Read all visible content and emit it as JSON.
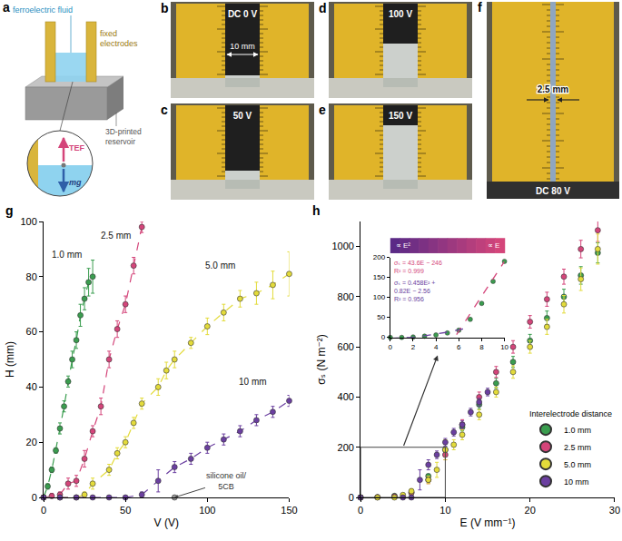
{
  "photos": {
    "a": {
      "fluid": "ferroelectric fluid",
      "electrodes": "fixed electrodes",
      "reservoir": "3D-printed reservoir",
      "up_force": "TEF",
      "down_force": "mg"
    },
    "b": {
      "voltage": "DC 0 V",
      "gap": "10 mm"
    },
    "c": {
      "voltage": "50 V"
    },
    "d": {
      "voltage": "100 V"
    },
    "e": {
      "voltage": "150 V"
    },
    "f": {
      "gap": "2.5 mm",
      "voltage": "DC 80 V"
    }
  },
  "chart_data": [
    {
      "panel": "g",
      "type": "scatter",
      "x_label": "V (V)",
      "y_label": "H (mm)",
      "xlim": [
        0,
        150
      ],
      "ylim": [
        0,
        100
      ],
      "xticks": [
        0,
        50,
        100,
        150
      ],
      "yticks": [
        0,
        20,
        40,
        60,
        80,
        100
      ],
      "grid": false,
      "line_style": "dashed",
      "marker": "circle",
      "series": [
        {
          "name": "1.0 mm",
          "color": "#3a9d4f",
          "label_at": [
            14,
            88
          ],
          "x": [
            0,
            2.5,
            5,
            7.5,
            10,
            12.5,
            15,
            17.5,
            20,
            22.5,
            25,
            27.5,
            30
          ],
          "values": [
            0,
            4,
            10,
            17,
            25,
            33,
            42,
            50,
            57,
            66,
            72,
            78,
            80
          ],
          "errors": [
            0,
            1,
            1,
            1,
            2,
            2,
            2,
            3,
            3,
            4,
            4,
            5,
            6
          ]
        },
        {
          "name": "2.5 mm",
          "color": "#d4457a",
          "label_at": [
            44,
            95
          ],
          "x": [
            0,
            5,
            10,
            15,
            20,
            25,
            30,
            35,
            40,
            45,
            50,
            55,
            60
          ],
          "values": [
            0,
            0.5,
            1,
            5,
            6,
            14,
            24,
            33,
            50,
            61,
            70,
            84,
            98
          ],
          "errors": [
            0,
            1,
            1,
            2,
            2,
            3,
            2,
            3,
            3,
            3,
            3,
            3,
            2
          ]
        },
        {
          "name": "5.0 mm",
          "color": "#e3db3a",
          "label_at": [
            108,
            84
          ],
          "x": [
            0,
            10,
            20,
            25,
            30,
            40,
            45,
            50,
            55,
            60,
            70,
            75,
            80,
            90,
            100,
            110,
            120,
            130,
            140,
            150
          ],
          "values": [
            0,
            0,
            0,
            1,
            5,
            10,
            16,
            20,
            27,
            34,
            40,
            46,
            50,
            56,
            62,
            67,
            72,
            74,
            77,
            81
          ],
          "errors": [
            0,
            0,
            0,
            1,
            2,
            2,
            2,
            2,
            2,
            2,
            3,
            3,
            3,
            2,
            3,
            3,
            3,
            4,
            5,
            8
          ]
        },
        {
          "name": "10 mm",
          "color": "#6b3fa0",
          "label_at": [
            128,
            42
          ],
          "x": [
            0,
            10,
            20,
            30,
            40,
            50,
            60,
            70,
            80,
            90,
            100,
            110,
            120,
            130,
            140,
            150
          ],
          "values": [
            0,
            0,
            0,
            0,
            0,
            0,
            1,
            6,
            11,
            14,
            18,
            21,
            24,
            28,
            31,
            35
          ],
          "errors": [
            0,
            0,
            0,
            0,
            0,
            0,
            1,
            4,
            2,
            2,
            2,
            2,
            2,
            2,
            2,
            2
          ]
        },
        {
          "name": "silicone oil/ 5CB",
          "color": "#9a9a9a",
          "line_style": "none",
          "label_at": [
            112,
            6
          ],
          "x": [
            80
          ],
          "values": [
            0
          ]
        }
      ]
    },
    {
      "panel": "h",
      "type": "scatter",
      "x_label": "E (V mm⁻¹)",
      "y_label": "σₛ (N m⁻²)",
      "xlim": [
        0,
        30
      ],
      "ylim": [
        0,
        1100
      ],
      "xticks": [
        0,
        10,
        20,
        30
      ],
      "yticks": [
        0,
        200,
        400,
        600,
        800,
        1000
      ],
      "grid": false,
      "marker": "circle",
      "legend": "lower right",
      "legend_title": "Interelectrode distance",
      "series": [
        {
          "name": "1.0 mm",
          "color": "#3a9d4f",
          "x": [
            0,
            2,
            4,
            6,
            8,
            10,
            12,
            14,
            16,
            18,
            20,
            22,
            24,
            26,
            28
          ],
          "values": [
            0,
            1,
            6,
            18,
            85,
            190,
            280,
            370,
            455,
            540,
            625,
            715,
            800,
            885,
            975
          ],
          "errors": [
            0,
            1,
            2,
            4,
            8,
            12,
            15,
            18,
            20,
            22,
            25,
            28,
            30,
            35,
            40
          ]
        },
        {
          "name": "2.5 mm",
          "color": "#d4457a",
          "x": [
            0,
            2,
            4,
            6,
            8,
            10,
            12,
            14,
            16,
            18,
            20,
            22,
            24,
            26,
            28
          ],
          "values": [
            0,
            1,
            4,
            20,
            70,
            170,
            290,
            400,
            500,
            600,
            700,
            790,
            880,
            990,
            1065
          ],
          "errors": [
            0,
            1,
            3,
            8,
            15,
            20,
            20,
            20,
            22,
            25,
            25,
            28,
            30,
            35,
            45
          ]
        },
        {
          "name": "5.0 mm",
          "color": "#e3db3a",
          "x": [
            0,
            2,
            4,
            5,
            6,
            8,
            9,
            10,
            11,
            12,
            14,
            16,
            18,
            20,
            22,
            24,
            26,
            28
          ],
          "values": [
            0,
            0,
            0,
            10,
            25,
            70,
            110,
            190,
            210,
            250,
            330,
            420,
            500,
            600,
            680,
            770,
            870,
            990
          ],
          "errors": [
            0,
            0,
            0,
            5,
            10,
            15,
            30,
            40,
            20,
            20,
            20,
            20,
            25,
            25,
            30,
            35,
            45,
            60
          ]
        },
        {
          "name": "10 mm",
          "color": "#6b3fa0",
          "x": [
            0,
            5,
            6,
            7,
            8,
            9,
            10,
            11,
            12,
            13,
            14,
            15
          ],
          "values": [
            0,
            0,
            0,
            70,
            130,
            170,
            220,
            260,
            290,
            340,
            380,
            420
          ],
          "errors": [
            0,
            0,
            0,
            40,
            20,
            15,
            15,
            15,
            15,
            15,
            15,
            15
          ]
        }
      ],
      "inset": {
        "type": "scatter",
        "xlim": [
          0,
          10
        ],
        "ylim": [
          0,
          200
        ],
        "xticks": [
          0,
          2,
          4,
          6,
          8,
          10
        ],
        "yticks": [
          0,
          50,
          100,
          150,
          200
        ],
        "regimes": [
          "∝ E²",
          "∝ E"
        ],
        "points": {
          "color": "#3a9d4f",
          "x": [
            0,
            1,
            2,
            3,
            4,
            5,
            6,
            7,
            8,
            9,
            10
          ],
          "values": [
            0,
            0,
            1,
            3,
            6,
            11,
            18,
            45,
            85,
            140,
            190
          ]
        },
        "fits": [
          {
            "color": "#d4457a",
            "line_style": "dashed",
            "label": [
              "σₛ = 43.6E − 246",
              "R² = 0.999"
            ],
            "label_at": [
              0.2,
              198
            ],
            "x": [
              5.8,
              10
            ],
            "values": [
              7,
              190
            ]
          },
          {
            "color": "#6b3fa0",
            "line_style": "dashed",
            "label": [
              "σₛ = 0.458E² + 0.82E − 2.56",
              "R² = 0.956"
            ],
            "label_at": [
              0.2,
              150
            ],
            "x": [
              0,
              1,
              2,
              3,
              4,
              5,
              6,
              7
            ],
            "values": [
              -2.56,
              -1.28,
              0.91,
              4.02,
              8.05,
              12.99,
              18.85,
              25.6
            ]
          }
        ]
      }
    }
  ]
}
